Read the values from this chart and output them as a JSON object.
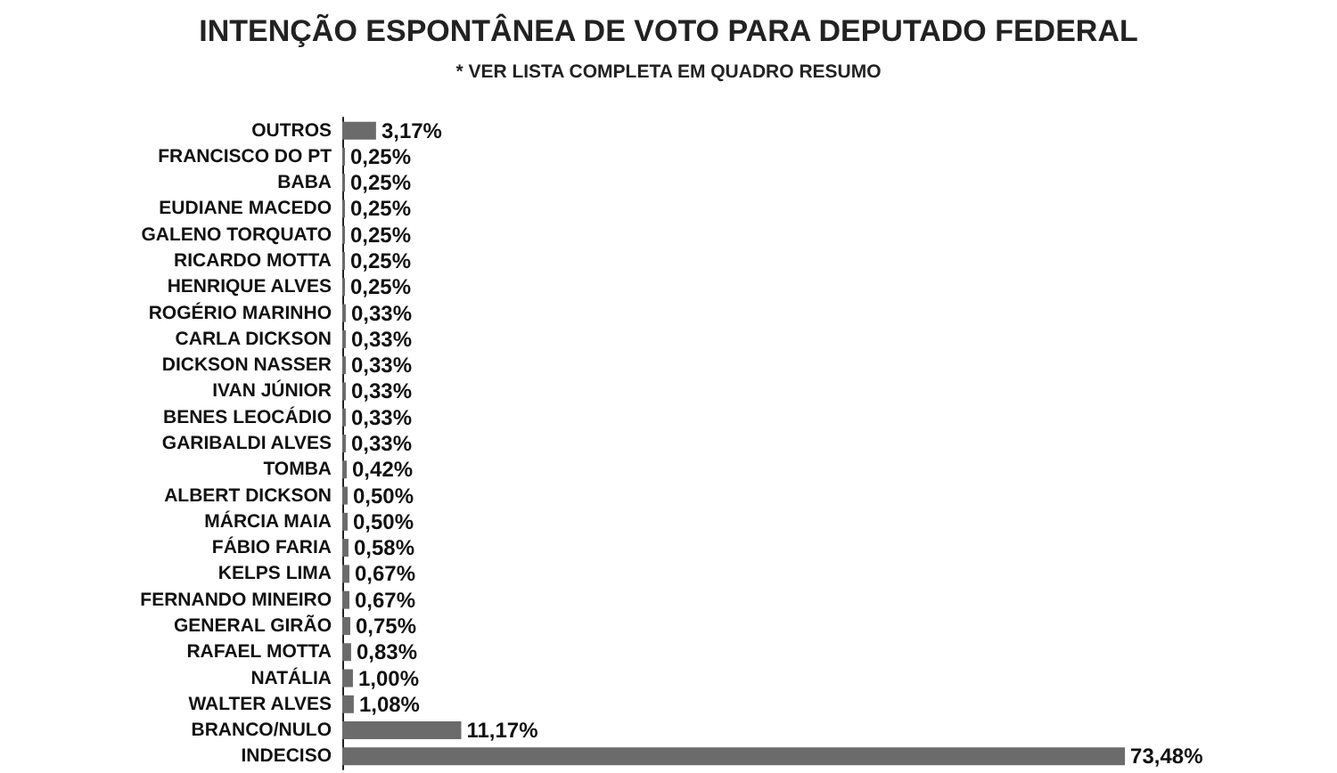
{
  "chart_data": {
    "type": "bar",
    "orientation": "horizontal",
    "title": "INTENÇÃO ESPONTÂNEA DE VOTO PARA DEPUTADO FEDERAL",
    "subtitle": "* VER LISTA COMPLETA EM QUADRO RESUMO",
    "categories": [
      "OUTROS",
      "FRANCISCO DO PT",
      "BABA",
      "EUDIANE MACEDO",
      "GALENO TORQUATO",
      "RICARDO MOTTA",
      "HENRIQUE ALVES",
      "ROGÉRIO MARINHO",
      "CARLA DICKSON",
      "DICKSON NASSER",
      "IVAN JÚNIOR",
      "BENES LEOCÁDIO",
      "GARIBALDI ALVES",
      "TOMBA",
      "ALBERT DICKSON",
      "MÁRCIA MAIA",
      "FÁBIO FARIA",
      "KELPS LIMA",
      "FERNANDO MINEIRO",
      "GENERAL GIRÃO",
      "RAFAEL MOTTA",
      "NATÁLIA",
      "WALTER ALVES",
      "BRANCO/NULO",
      "INDECISO"
    ],
    "values": [
      3.17,
      0.25,
      0.25,
      0.25,
      0.25,
      0.25,
      0.25,
      0.33,
      0.33,
      0.33,
      0.33,
      0.33,
      0.33,
      0.42,
      0.5,
      0.5,
      0.58,
      0.67,
      0.67,
      0.75,
      0.83,
      1.0,
      1.08,
      11.17,
      73.48
    ],
    "value_labels": [
      "3,17%",
      "0,25%",
      "0,25%",
      "0,25%",
      "0,25%",
      "0,25%",
      "0,25%",
      "0,33%",
      "0,33%",
      "0,33%",
      "0,33%",
      "0,33%",
      "0,33%",
      "0,42%",
      "0,50%",
      "0,50%",
      "0,58%",
      "0,67%",
      "0,67%",
      "0,75%",
      "0,83%",
      "1,00%",
      "1,08%",
      "11,17%",
      "73,48%"
    ],
    "color": "#6b6b6b",
    "grid": false
  }
}
